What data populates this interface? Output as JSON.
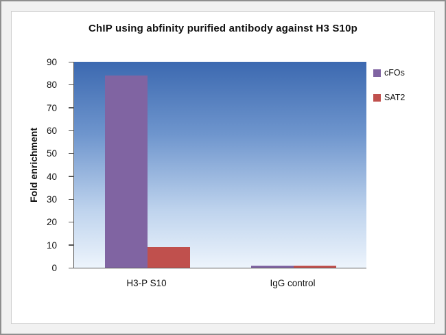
{
  "frame": {
    "outer_background": "#f1f1f1",
    "panel_background": "#ffffff"
  },
  "chart_data": {
    "type": "bar",
    "title": "ChIP using abfinity purified antibody against H3 S10p",
    "ylabel": "Fold enrichment",
    "xlabel": "",
    "ylim": [
      0,
      90
    ],
    "yticks": [
      90,
      80,
      70,
      60,
      50,
      40,
      30,
      20,
      10,
      0
    ],
    "categories": [
      "H3-P S10",
      "IgG control"
    ],
    "series": [
      {
        "name": "cFOs",
        "color": "#8064a2",
        "values": [
          84,
          1
        ]
      },
      {
        "name": "SAT2",
        "color": "#c0504d",
        "values": [
          9,
          1
        ]
      }
    ],
    "legend_position": "top-right",
    "grid": false,
    "plot_gradient": [
      {
        "color": "#3c69b0",
        "pos": 0
      },
      {
        "color": "#6e95cd",
        "pos": 35
      },
      {
        "color": "#bed3ed",
        "pos": 72
      },
      {
        "color": "#edf4fc",
        "pos": 100
      }
    ]
  }
}
